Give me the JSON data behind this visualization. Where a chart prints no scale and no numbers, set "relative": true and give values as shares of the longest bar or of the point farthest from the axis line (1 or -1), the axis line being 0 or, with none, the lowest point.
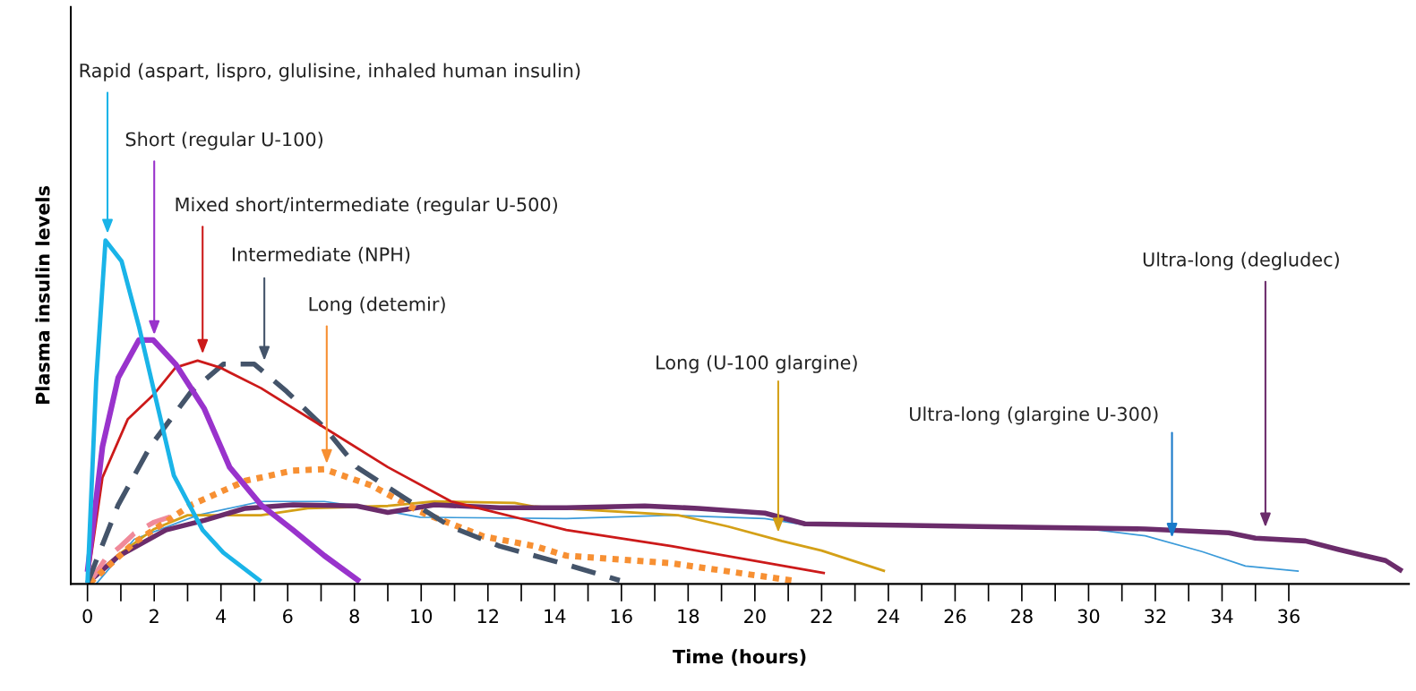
{
  "chart_data": {
    "type": "line",
    "relative": true,
    "xlabel": "Time (hours)",
    "ylabel": "Plasma insulin levels",
    "xlim": [
      -0.5,
      39.6
    ],
    "xticks": [
      0,
      2,
      4,
      6,
      8,
      10,
      12,
      14,
      16,
      18,
      20,
      22,
      24,
      26,
      28,
      30,
      32,
      34,
      36
    ],
    "tick_labels": "x",
    "grid": false,
    "marker": "none",
    "series": [
      {
        "color": "#1ab4e8",
        "line_style": "solid",
        "x": [
          0,
          0.26,
          0.54,
          1.02,
          1.54,
          2.07,
          2.59,
          3.45,
          4.07,
          5.2
        ],
        "values": [
          0.003,
          0.59,
          1.0,
          0.94,
          0.75,
          0.53,
          0.315,
          0.157,
          0.091,
          0.007
        ]
      },
      {
        "color": "#9933cc",
        "line_style": "solid",
        "x": [
          0,
          0.45,
          0.92,
          1.54,
          1.97,
          2.64,
          3.5,
          4.26,
          5.2,
          6.16,
          7.1,
          8.16
        ],
        "values": [
          0.035,
          0.4,
          0.6,
          0.71,
          0.71,
          0.64,
          0.51,
          0.34,
          0.23,
          0.157,
          0.082,
          0.007
        ]
      },
      {
        "color": "#cc1a1a",
        "line_style": "solid",
        "x": [
          0,
          0.45,
          1.21,
          1.97,
          2.64,
          3.3,
          3.97,
          5.2,
          7.1,
          9.0,
          10.9,
          13.4,
          14.35,
          17.5,
          22.1
        ],
        "values": [
          0.007,
          0.31,
          0.48,
          0.55,
          0.63,
          0.65,
          0.63,
          0.57,
          0.455,
          0.34,
          0.24,
          0.18,
          0.157,
          0.11,
          0.031
        ]
      },
      {
        "color": "#44546a",
        "line_style": "dashed",
        "x": [
          0,
          0.92,
          1.88,
          3.11,
          4.07,
          5.0,
          5.97,
          7.1,
          8.07,
          9.5,
          10.9,
          12.35,
          14.26,
          15.95
        ],
        "values": [
          0.003,
          0.23,
          0.4,
          0.56,
          0.64,
          0.64,
          0.56,
          0.455,
          0.34,
          0.25,
          0.166,
          0.11,
          0.059,
          0.01
        ]
      },
      {
        "color": "#f79033",
        "line_style": "dotted",
        "x": [
          0.07,
          1.4,
          3.11,
          4.73,
          6.16,
          7.1,
          8.5,
          9.97,
          11.88,
          13.4,
          14.35,
          17.5,
          21.1
        ],
        "values": [
          0.003,
          0.12,
          0.23,
          0.3,
          0.33,
          0.334,
          0.287,
          0.21,
          0.138,
          0.11,
          0.082,
          0.06,
          0.01
        ]
      },
      {
        "color": "#d4a017",
        "line_style": "solid",
        "x": [
          0,
          1,
          2,
          3.0,
          5.2,
          6.6,
          9.0,
          10.4,
          12.8,
          13.4,
          17.7,
          19.2,
          20.8,
          22.0,
          23.9
        ],
        "values": [
          0.005,
          0.09,
          0.16,
          0.2,
          0.2,
          0.22,
          0.227,
          0.24,
          0.236,
          0.225,
          0.2,
          0.167,
          0.125,
          0.097,
          0.037
        ]
      },
      {
        "color": "#3a9ad9",
        "line_style": "solid",
        "x": [
          0.26,
          1.4,
          3.3,
          5.2,
          7.1,
          8.5,
          9.97,
          14.35,
          17.5,
          20.3,
          21.5,
          30.0,
          31.7,
          33.4,
          34.7,
          36.3
        ],
        "values": [
          0,
          0.13,
          0.2,
          0.24,
          0.24,
          0.22,
          0.194,
          0.19,
          0.2,
          0.19,
          0.172,
          0.16,
          0.14,
          0.094,
          0.052,
          0.037
        ]
      },
      {
        "color": "#6b2c6b",
        "line_style": "solid",
        "x": [
          0,
          0.92,
          2.35,
          3.5,
          4.73,
          6.16,
          8.07,
          9.0,
          10.4,
          12.35,
          14.35,
          16.7,
          18.3,
          20.3,
          21.5,
          26.7,
          31.7,
          34.2,
          35.0,
          36.5,
          37.5,
          38.9,
          39.4
        ],
        "values": [
          0.003,
          0.08,
          0.157,
          0.185,
          0.22,
          0.23,
          0.227,
          0.208,
          0.23,
          0.222,
          0.222,
          0.227,
          0.22,
          0.206,
          0.175,
          0.167,
          0.16,
          0.149,
          0.133,
          0.125,
          0.1,
          0.068,
          0.037
        ]
      },
      {
        "color": "#f08a9a",
        "line_style": "dashed",
        "x": [
          0.1,
          0.54,
          1.0,
          1.4,
          2.0,
          2.64
        ],
        "values": [
          0.01,
          0.073,
          0.11,
          0.147,
          0.18,
          0.2
        ]
      }
    ],
    "annotations": [
      "Rapid (aspart, lispro, glulisine, inhaled human insulin)",
      "Short (regular U-100)",
      "Mixed short/intermediate (regular U-500)",
      "Intermediate (NPH)",
      "Long (detemir)",
      "Long (U-100 glargine)",
      "Ultra-long (glargine U-300)",
      "Ultra-long (degludec)"
    ]
  }
}
